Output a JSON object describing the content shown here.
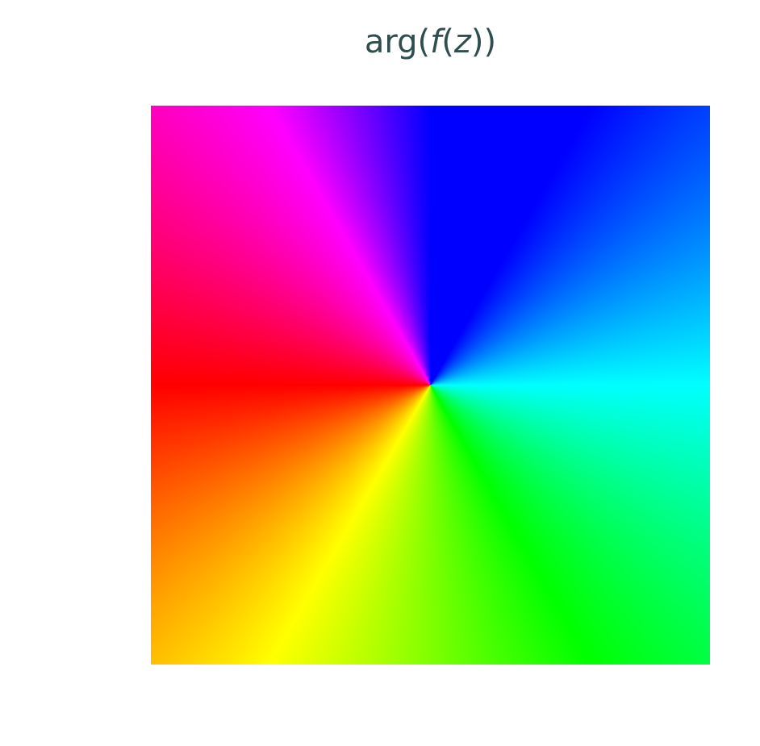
{
  "chart_data": {
    "type": "heatmap",
    "title": {
      "prefix": "arg(",
      "func": "f",
      "open": "(",
      "var": "z",
      "suffix": "))"
    },
    "xlabel": "",
    "ylabel": "",
    "colormap": "hsv",
    "quantity": "arg(f(z))",
    "hue_stops": [
      {
        "arg_deg": 0,
        "color": "#00ffff"
      },
      {
        "arg_deg": 60,
        "color": "#0000ff"
      },
      {
        "arg_deg": 120,
        "color": "#ff00ff"
      },
      {
        "arg_deg": 180,
        "color": "#ff0000"
      },
      {
        "arg_deg": 240,
        "color": "#ffff00"
      },
      {
        "arg_deg": 300,
        "color": "#00ff00"
      },
      {
        "arg_deg": 360,
        "color": "#00ffff"
      }
    ],
    "grid": false,
    "legend": "none"
  }
}
